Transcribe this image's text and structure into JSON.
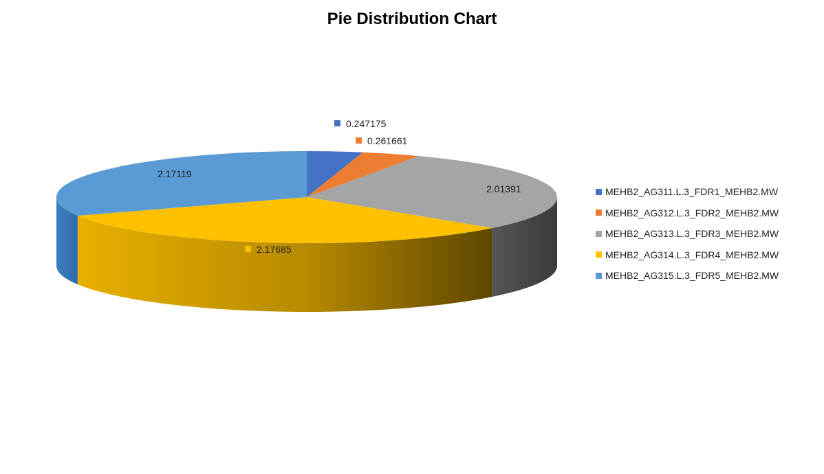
{
  "chart_data": {
    "type": "pie",
    "title": "Pie Distribution Chart",
    "categories": [
      "MEHB2_AG311.L.3_FDR1_MEHB2.MW",
      "MEHB2_AG312.L.3_FDR2_MEHB2.MW",
      "MEHB2_AG313.L.3_FDR3_MEHB2.MW",
      "MEHB2_AG314.L.3_FDR4_MEHB2.MW",
      "MEHB2_AG315.L.3_FDR5_MEHB2.MW"
    ],
    "values": [
      0.247175,
      0.261661,
      2.01391,
      2.17685,
      2.17119
    ],
    "data_labels": [
      "0.247175",
      "0.261661",
      "2.01391",
      "2.17685",
      "2.17119"
    ],
    "colors": [
      "#4472C4",
      "#ED7D31",
      "#A5A5A5",
      "#FFC000",
      "#5B9BD5"
    ],
    "legend_position": "right",
    "style": "3d"
  }
}
